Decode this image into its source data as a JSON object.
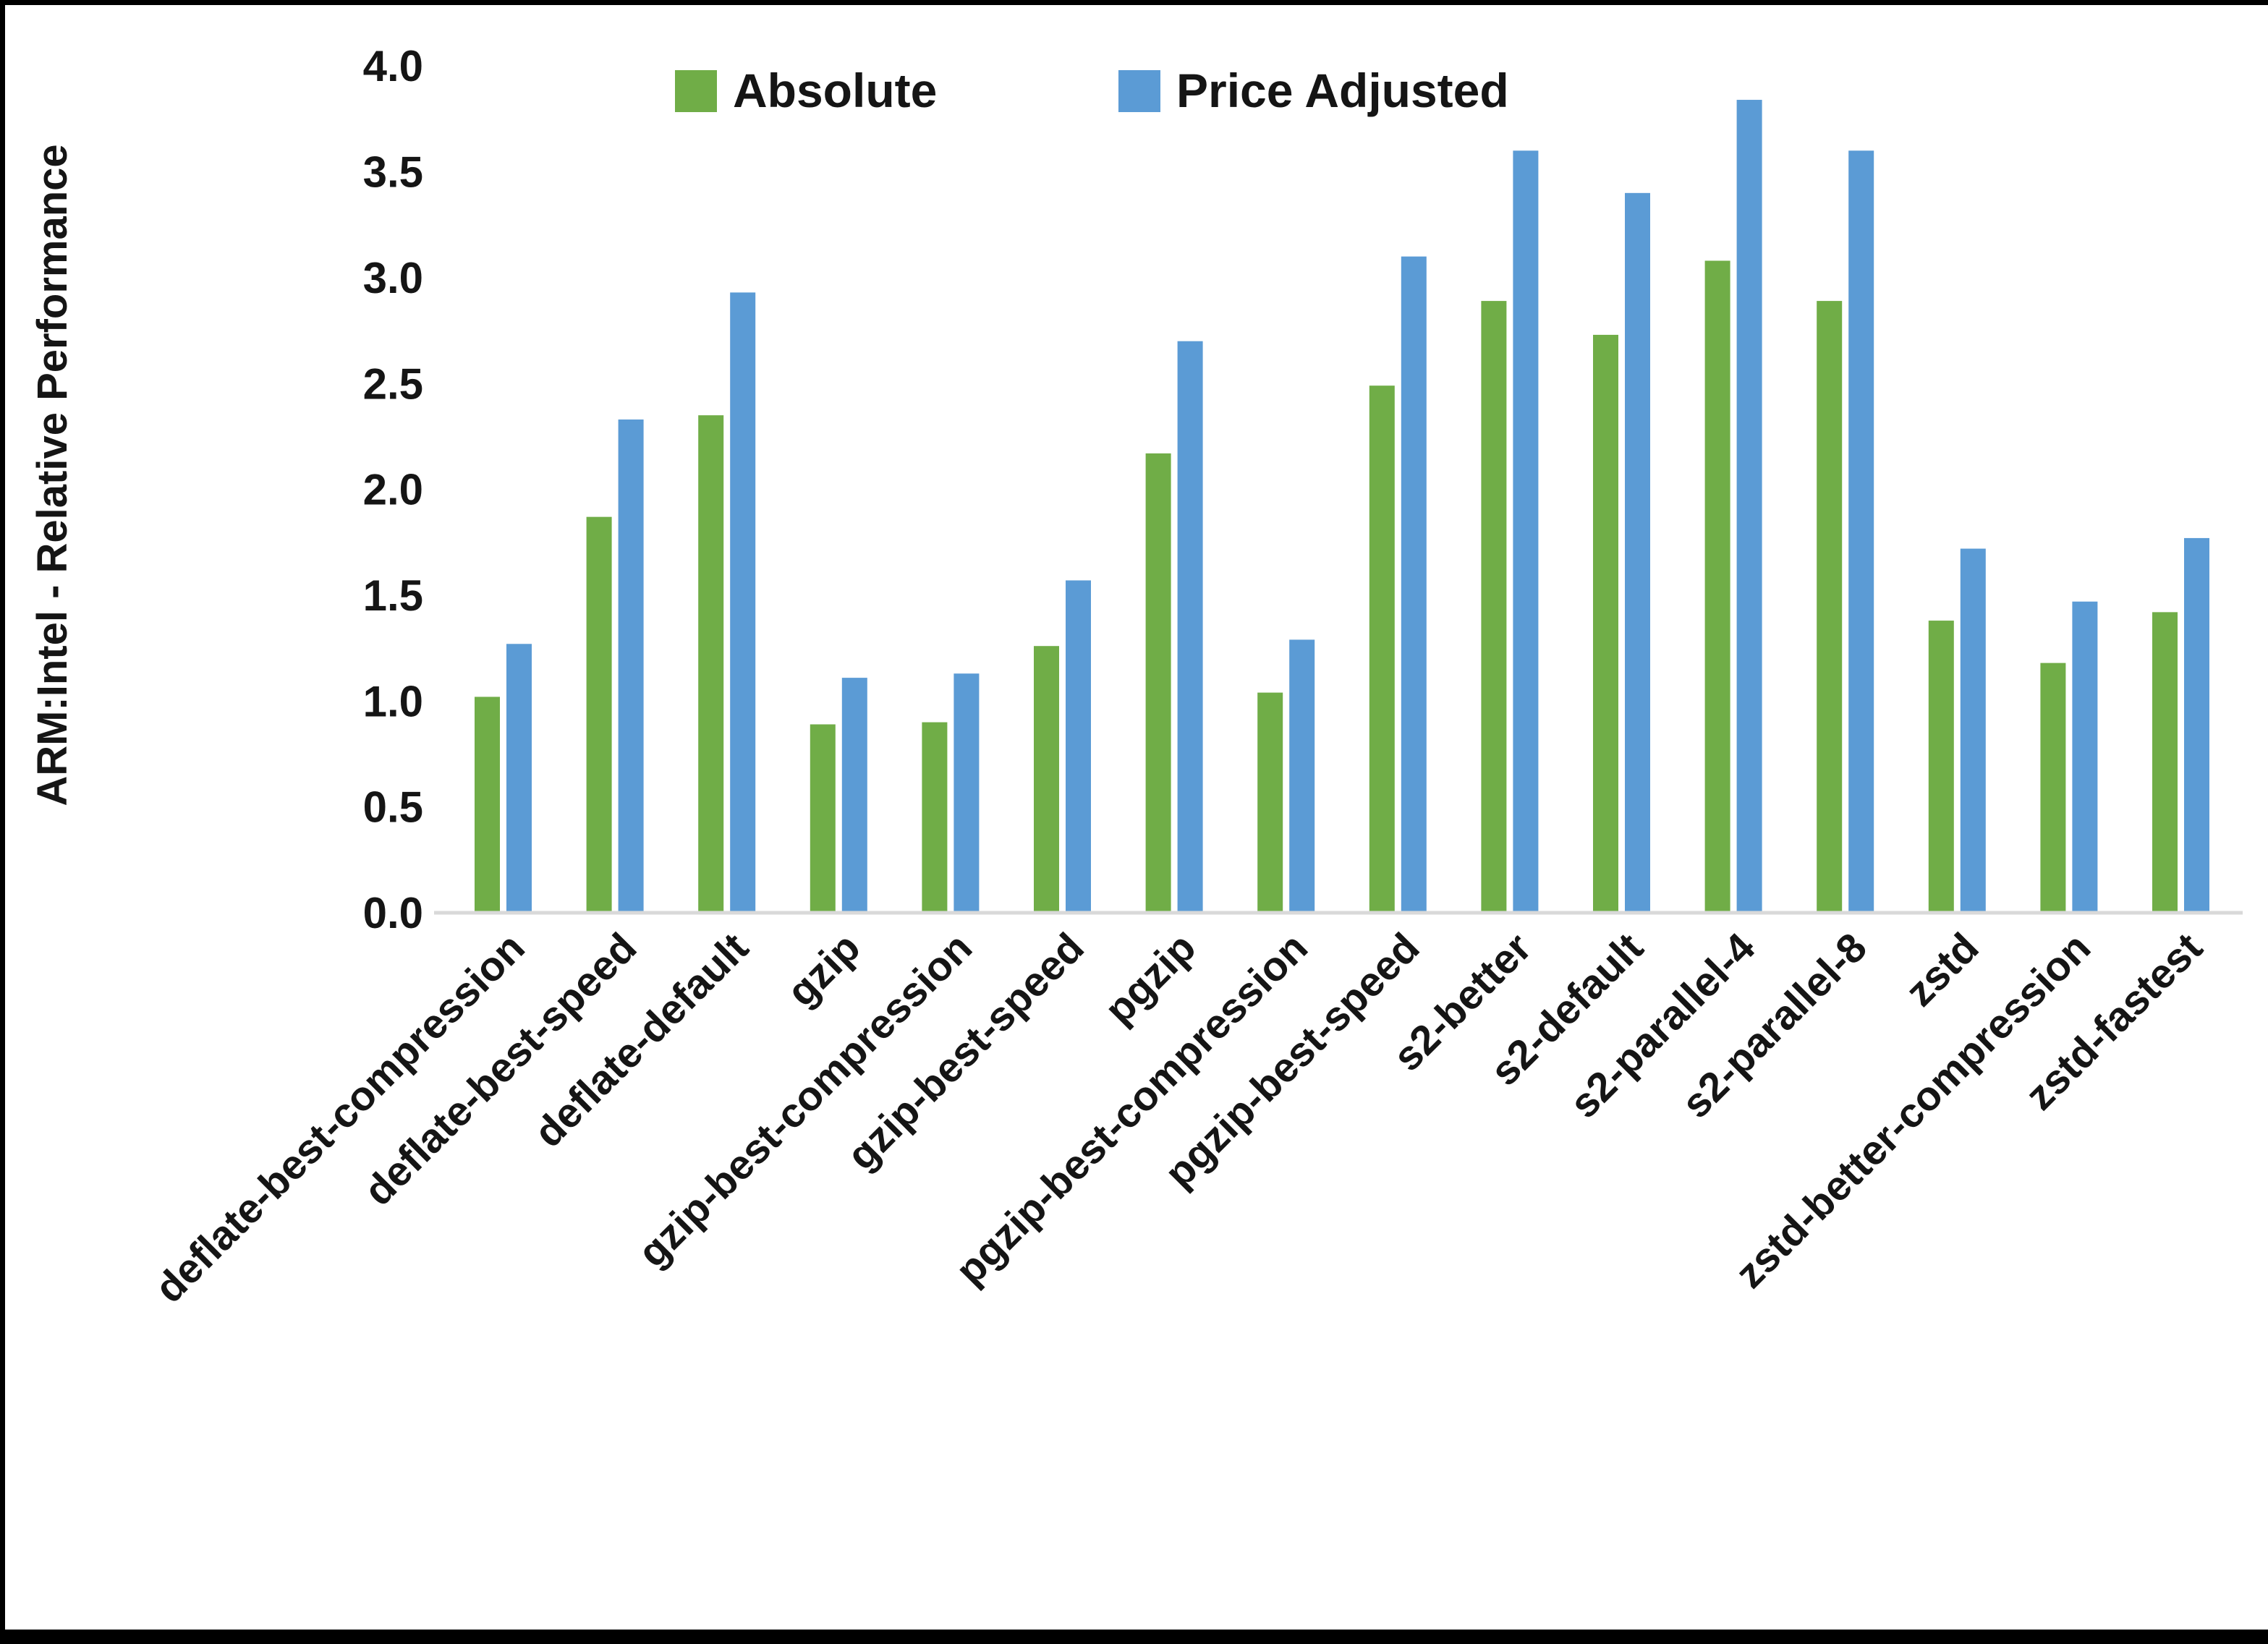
{
  "chart_data": {
    "type": "bar",
    "title": "",
    "xlabel": "",
    "ylabel": "ARM:Intel - Relative Performance",
    "ylim": [
      0.0,
      4.0
    ],
    "ytick_step": 0.5,
    "grid": "off",
    "legend_position": "top-center",
    "categories": [
      "deflate-best-compression",
      "deflate-best-speed",
      "deflate-default",
      "gzip",
      "gzip-best-compression",
      "gzip-best-speed",
      "pgzip",
      "pgzip-best-compression",
      "pgzip-best-speed",
      "s2-better",
      "s2-default",
      "s2-parallel-4",
      "s2-parallel-8",
      "zstd",
      "zstd-better-compression",
      "zstd-fastest"
    ],
    "series": [
      {
        "name": "Absolute",
        "color": "#70AD47",
        "values": [
          1.02,
          1.87,
          2.35,
          0.89,
          0.9,
          1.26,
          2.17,
          1.04,
          2.49,
          2.89,
          2.73,
          3.08,
          2.89,
          1.38,
          1.18,
          1.42
        ]
      },
      {
        "name": "Price Adjusted",
        "color": "#5B9BD5",
        "values": [
          1.27,
          2.33,
          2.93,
          1.11,
          1.13,
          1.57,
          2.7,
          1.29,
          3.1,
          3.6,
          3.4,
          3.84,
          3.6,
          1.72,
          1.47,
          1.77
        ]
      }
    ],
    "axis_line_color": "#D9D9D9",
    "tick_label_color": "#151515"
  }
}
